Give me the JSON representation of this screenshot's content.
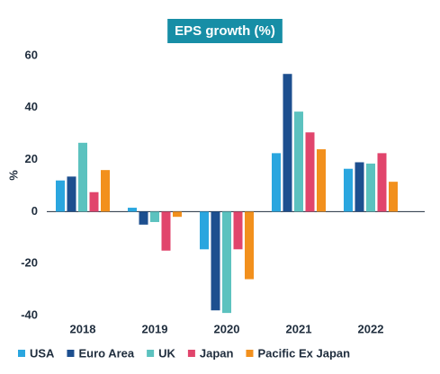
{
  "chart_data": {
    "type": "bar",
    "title": "EPS growth (%)",
    "y_label": "%",
    "categories": [
      "2018",
      "2019",
      "2020",
      "2021",
      "2022"
    ],
    "series": [
      {
        "name": "USA",
        "color": "#2aa6df",
        "values": [
          12,
          1.5,
          -14.5,
          22.5,
          16.5
        ]
      },
      {
        "name": "Euro Area",
        "color": "#1d4f8f",
        "values": [
          13.5,
          -5,
          -38,
          53,
          19
        ]
      },
      {
        "name": "UK",
        "color": "#5cc2bf",
        "values": [
          26.5,
          -4,
          -39,
          38.5,
          18.5
        ]
      },
      {
        "name": "Japan",
        "color": "#e1456c",
        "values": [
          7.5,
          -15,
          -14.5,
          30.5,
          22.5
        ]
      },
      {
        "name": "Pacific Ex Japan",
        "color": "#f2901d",
        "values": [
          16,
          -2,
          -26,
          24,
          11.5
        ]
      }
    ],
    "ylim": [
      -40,
      60
    ],
    "yticks": [
      -40,
      -20,
      0,
      20,
      40,
      60
    ],
    "grid": false,
    "title_box_color": "#178ea6",
    "legend": "bottom"
  }
}
